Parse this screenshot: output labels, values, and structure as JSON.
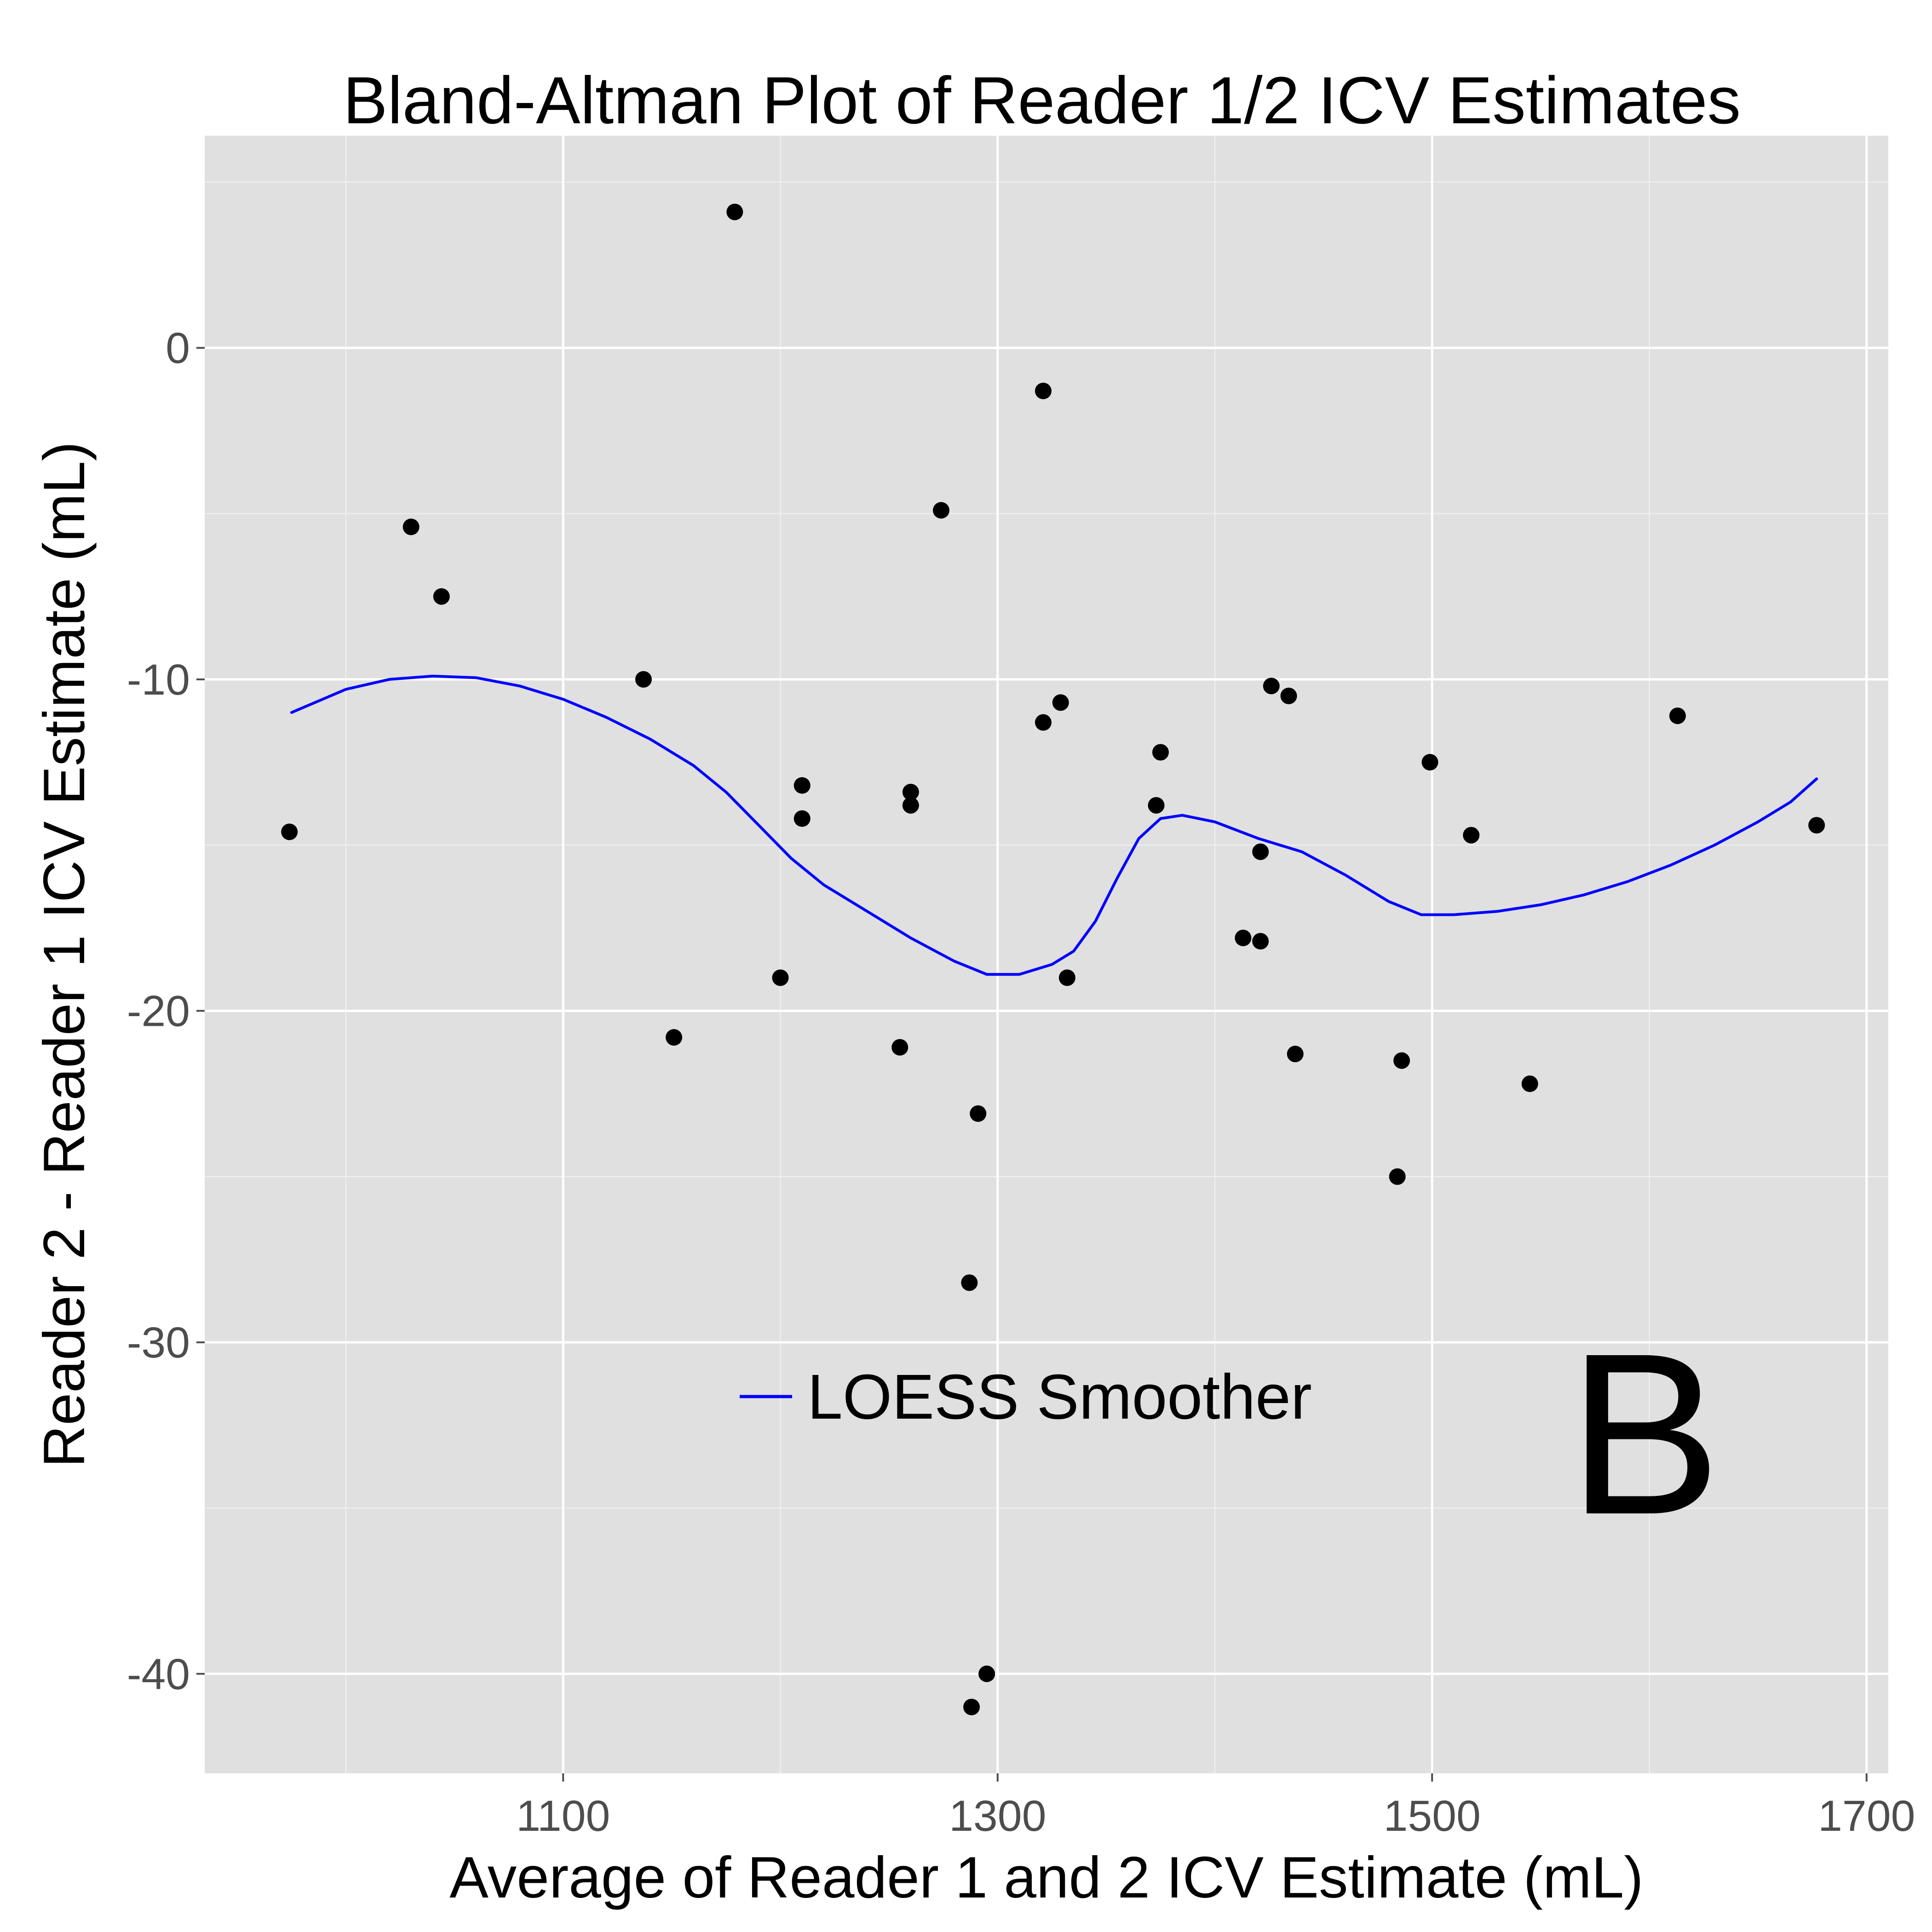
{
  "chart_data": {
    "type": "scatter",
    "title": "Bland-Altman Plot of Reader 1/2 ICV Estimates",
    "xlabel": "Average of Reader 1 and 2 ICV Estimate (mL)",
    "ylabel": "Reader 2 - Reader 1 ICV Estimate (mL)",
    "xlim": [
      935,
      1710
    ],
    "ylim": [
      -43,
      6.4
    ],
    "x_ticks": [
      1100,
      1300,
      1500,
      1700
    ],
    "y_ticks": [
      0,
      -10,
      -20,
      -30,
      -40
    ],
    "x_tick_labels": [
      "1100",
      "1300",
      "1500",
      "1700"
    ],
    "y_tick_labels": [
      "0",
      "-10",
      "-20",
      "-30",
      "-40"
    ],
    "grid": true,
    "background_color": "#e0e0e0",
    "grid_color": "#ffffff",
    "point_color": "#000000",
    "series": [
      {
        "type": "scatter",
        "points": [
          [
            974,
            -14.6
          ],
          [
            1030,
            -5.4
          ],
          [
            1044,
            -7.5
          ],
          [
            1137,
            -10.0
          ],
          [
            1151,
            -20.8
          ],
          [
            1179,
            4.1
          ],
          [
            1200,
            -19.0
          ],
          [
            1210,
            -13.2
          ],
          [
            1210,
            -14.2
          ],
          [
            1255,
            -21.1
          ],
          [
            1260,
            -13.4
          ],
          [
            1260,
            -13.8
          ],
          [
            1274,
            -4.9
          ],
          [
            1287,
            -28.2
          ],
          [
            1288,
            -41.0
          ],
          [
            1291,
            -23.1
          ],
          [
            1295,
            -40.0
          ],
          [
            1321,
            -1.3
          ],
          [
            1321,
            -11.3
          ],
          [
            1329,
            -10.7
          ],
          [
            1332,
            -19.0
          ],
          [
            1373,
            -13.8
          ],
          [
            1375,
            -12.2
          ],
          [
            1413,
            -17.8
          ],
          [
            1421,
            -15.2
          ],
          [
            1421,
            -17.9
          ],
          [
            1426,
            -10.2
          ],
          [
            1434,
            -10.5
          ],
          [
            1437,
            -21.3
          ],
          [
            1484,
            -25.0
          ],
          [
            1486,
            -21.5
          ],
          [
            1499,
            -12.5
          ],
          [
            1518,
            -14.7
          ],
          [
            1545,
            -22.2
          ],
          [
            1613,
            -11.1
          ],
          [
            1677,
            -14.4
          ]
        ]
      },
      {
        "type": "line",
        "name": "LOESS Smoother",
        "color": "#0000ff",
        "points": [
          [
            975,
            -11.0
          ],
          [
            1000,
            -10.3
          ],
          [
            1020,
            -10.0
          ],
          [
            1040,
            -9.9
          ],
          [
            1060,
            -9.95
          ],
          [
            1080,
            -10.2
          ],
          [
            1100,
            -10.6
          ],
          [
            1120,
            -11.15
          ],
          [
            1140,
            -11.8
          ],
          [
            1160,
            -12.6
          ],
          [
            1175,
            -13.4
          ],
          [
            1190,
            -14.4
          ],
          [
            1205,
            -15.4
          ],
          [
            1220,
            -16.2
          ],
          [
            1240,
            -17.0
          ],
          [
            1260,
            -17.8
          ],
          [
            1280,
            -18.5
          ],
          [
            1295,
            -18.9
          ],
          [
            1310,
            -18.9
          ],
          [
            1325,
            -18.6
          ],
          [
            1335,
            -18.2
          ],
          [
            1345,
            -17.3
          ],
          [
            1355,
            -16.0
          ],
          [
            1365,
            -14.8
          ],
          [
            1375,
            -14.2
          ],
          [
            1385,
            -14.1
          ],
          [
            1400,
            -14.3
          ],
          [
            1420,
            -14.8
          ],
          [
            1440,
            -15.2
          ],
          [
            1460,
            -15.9
          ],
          [
            1480,
            -16.7
          ],
          [
            1495,
            -17.1
          ],
          [
            1510,
            -17.1
          ],
          [
            1530,
            -17.0
          ],
          [
            1550,
            -16.8
          ],
          [
            1570,
            -16.5
          ],
          [
            1590,
            -16.1
          ],
          [
            1610,
            -15.6
          ],
          [
            1630,
            -15.0
          ],
          [
            1650,
            -14.3
          ],
          [
            1665,
            -13.7
          ],
          [
            1677,
            -13.0
          ]
        ]
      }
    ],
    "legend": {
      "placement": "bottom-center",
      "entries": [
        {
          "label": "LOESS Smoother",
          "color": "#0000ff"
        }
      ]
    },
    "panel_label": "B"
  }
}
